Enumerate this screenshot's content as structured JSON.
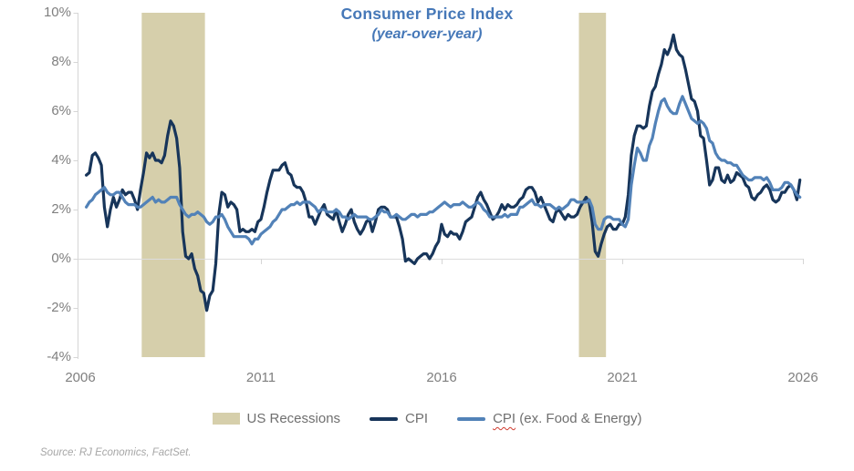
{
  "title": {
    "text": "Consumer Price Index",
    "subtitle": "(year-over-year)"
  },
  "source_note": "Source: RJ Economics, FactSet.",
  "colors": {
    "title": "#4678b8",
    "cpi_line": "#17355a",
    "core_cpi_line": "#5282b8",
    "recession_band": "#d6cfab",
    "axis_line": "#d6d6d6",
    "zero_gridline": "#dcdcdc",
    "axis_text": "#7f7f7f",
    "legend_text": "#6f6f6f",
    "source_text": "#a6a6a6",
    "spellcheck_squiggle": "#d03b2f"
  },
  "axes": {
    "y_ticks": [
      "10%",
      "8%",
      "6%",
      "4%",
      "2%",
      "0%",
      "-2%",
      "-4%"
    ],
    "x_ticks": [
      "2006",
      "2011",
      "2016",
      "2021",
      "2026"
    ]
  },
  "legend": {
    "items": [
      {
        "label": "US Recessions",
        "swatch": "rect"
      },
      {
        "label": "CPI",
        "swatch": "line"
      },
      {
        "label_word": "CPI",
        "label_rest": " (ex. Food & Energy)",
        "swatch": "line"
      }
    ]
  },
  "chart_data": {
    "type": "line",
    "title": "Consumer Price Index",
    "subtitle": "(year-over-year)",
    "xlabel": "",
    "ylabel": "",
    "x_axis": {
      "tick_labels": [
        "2006",
        "2011",
        "2016",
        "2021",
        "2026"
      ],
      "range_years": [
        2006,
        2026
      ]
    },
    "y_axis": {
      "tick_labels": [
        "10%",
        "8%",
        "6%",
        "4%",
        "2%",
        "0%",
        "-2%",
        "-4%"
      ],
      "range_pct": [
        -4,
        10
      ],
      "unit": "%"
    },
    "gridlines": "zero-line-only",
    "legend_position": "bottom",
    "x_start_year": 2006.1667,
    "x_step_years": 0.0833333,
    "recession_bands": [
      {
        "start": 2007.7,
        "end": 2009.45
      },
      {
        "start": 2019.8,
        "end": 2020.55
      }
    ],
    "series": [
      {
        "name": "CPI",
        "color_key": "cpi_line",
        "values": [
          3.4,
          3.5,
          4.2,
          4.3,
          4.1,
          3.8,
          2.1,
          1.3,
          2.0,
          2.5,
          2.1,
          2.4,
          2.8,
          2.6,
          2.7,
          2.7,
          2.4,
          2.0,
          2.8,
          3.5,
          4.3,
          4.1,
          4.3,
          4.0,
          4.0,
          3.9,
          4.2,
          5.0,
          5.6,
          5.4,
          4.9,
          3.7,
          1.1,
          0.1,
          0.0,
          0.2,
          -0.4,
          -0.7,
          -1.3,
          -1.4,
          -2.1,
          -1.5,
          -1.3,
          -0.2,
          1.8,
          2.7,
          2.6,
          2.1,
          2.3,
          2.2,
          2.0,
          1.1,
          1.2,
          1.1,
          1.1,
          1.2,
          1.1,
          1.5,
          1.6,
          2.1,
          2.7,
          3.2,
          3.6,
          3.6,
          3.6,
          3.8,
          3.9,
          3.5,
          3.4,
          3.0,
          2.9,
          2.9,
          2.7,
          2.3,
          1.7,
          1.7,
          1.4,
          1.7,
          2.0,
          2.2,
          1.8,
          1.7,
          1.6,
          2.0,
          1.5,
          1.1,
          1.4,
          1.8,
          2.0,
          1.5,
          1.2,
          1.0,
          1.2,
          1.5,
          1.6,
          1.1,
          1.5,
          2.0,
          2.1,
          2.1,
          2.0,
          1.7,
          1.7,
          1.7,
          1.3,
          0.8,
          -0.1,
          0.0,
          -0.1,
          -0.2,
          0.0,
          0.1,
          0.2,
          0.2,
          0.0,
          0.2,
          0.5,
          0.7,
          1.4,
          1.0,
          0.9,
          1.1,
          1.0,
          1.0,
          0.8,
          1.1,
          1.5,
          1.6,
          1.7,
          2.1,
          2.5,
          2.7,
          2.4,
          2.2,
          1.9,
          1.6,
          1.7,
          1.9,
          2.2,
          2.0,
          2.2,
          2.1,
          2.1,
          2.2,
          2.4,
          2.5,
          2.8,
          2.9,
          2.9,
          2.7,
          2.3,
          2.5,
          2.2,
          1.9,
          1.6,
          1.5,
          1.9,
          2.0,
          1.8,
          1.6,
          1.8,
          1.7,
          1.7,
          1.8,
          2.1,
          2.3,
          2.5,
          2.3,
          1.5,
          0.3,
          0.1,
          0.6,
          1.0,
          1.3,
          1.4,
          1.2,
          1.2,
          1.4,
          1.4,
          1.7,
          2.6,
          4.2,
          5.0,
          5.4,
          5.4,
          5.3,
          5.4,
          6.2,
          6.8,
          7.0,
          7.5,
          7.9,
          8.5,
          8.3,
          8.6,
          9.1,
          8.5,
          8.3,
          8.2,
          7.7,
          7.1,
          6.5,
          6.4,
          6.0,
          5.0,
          4.9,
          4.0,
          3.0,
          3.2,
          3.7,
          3.7,
          3.2,
          3.1,
          3.4,
          3.1,
          3.2,
          3.5,
          3.4,
          3.3,
          3.0,
          2.9,
          2.5,
          2.4,
          2.6,
          2.7,
          2.9,
          3.0,
          2.8,
          2.4,
          2.3,
          2.4,
          2.7,
          2.7,
          2.9,
          3.0,
          2.8,
          2.4,
          3.2
        ]
      },
      {
        "name": "CPI (ex. Food & Energy)",
        "color_key": "core_cpi_line",
        "values": [
          2.1,
          2.3,
          2.4,
          2.6,
          2.7,
          2.8,
          2.9,
          2.7,
          2.6,
          2.6,
          2.7,
          2.7,
          2.5,
          2.3,
          2.2,
          2.2,
          2.2,
          2.1,
          2.1,
          2.2,
          2.3,
          2.4,
          2.5,
          2.3,
          2.4,
          2.3,
          2.3,
          2.4,
          2.5,
          2.5,
          2.5,
          2.2,
          2.0,
          1.8,
          1.7,
          1.8,
          1.8,
          1.9,
          1.8,
          1.7,
          1.5,
          1.4,
          1.5,
          1.7,
          1.7,
          1.8,
          1.6,
          1.3,
          1.1,
          0.9,
          0.9,
          0.9,
          0.9,
          0.9,
          0.8,
          0.6,
          0.8,
          0.8,
          1.0,
          1.1,
          1.2,
          1.3,
          1.5,
          1.6,
          1.8,
          2.0,
          2.0,
          2.1,
          2.2,
          2.2,
          2.3,
          2.2,
          2.3,
          2.3,
          2.3,
          2.2,
          2.1,
          1.9,
          2.0,
          2.0,
          1.9,
          1.9,
          1.9,
          2.0,
          1.9,
          1.7,
          1.7,
          1.6,
          1.7,
          1.8,
          1.7,
          1.7,
          1.7,
          1.7,
          1.6,
          1.6,
          1.7,
          1.8,
          2.0,
          1.9,
          1.9,
          1.7,
          1.7,
          1.8,
          1.7,
          1.6,
          1.6,
          1.7,
          1.8,
          1.8,
          1.7,
          1.8,
          1.8,
          1.8,
          1.9,
          1.9,
          2.0,
          2.1,
          2.2,
          2.3,
          2.2,
          2.1,
          2.2,
          2.2,
          2.2,
          2.3,
          2.2,
          2.1,
          2.1,
          2.2,
          2.3,
          2.2,
          2.0,
          1.9,
          1.7,
          1.7,
          1.7,
          1.7,
          1.7,
          1.8,
          1.7,
          1.8,
          1.8,
          1.8,
          2.1,
          2.1,
          2.2,
          2.3,
          2.4,
          2.2,
          2.2,
          2.1,
          2.2,
          2.2,
          2.2,
          2.1,
          2.0,
          2.1,
          2.0,
          2.1,
          2.2,
          2.4,
          2.4,
          2.3,
          2.3,
          2.3,
          2.3,
          2.4,
          2.1,
          1.4,
          1.2,
          1.2,
          1.6,
          1.7,
          1.7,
          1.6,
          1.6,
          1.6,
          1.4,
          1.3,
          1.6,
          3.0,
          3.8,
          4.5,
          4.3,
          4.0,
          4.0,
          4.6,
          4.9,
          5.5,
          6.0,
          6.4,
          6.5,
          6.2,
          6.0,
          5.9,
          5.9,
          6.3,
          6.6,
          6.3,
          6.0,
          5.7,
          5.6,
          5.5,
          5.6,
          5.5,
          5.3,
          4.8,
          4.7,
          4.3,
          4.1,
          4.0,
          4.0,
          3.9,
          3.9,
          3.8,
          3.8,
          3.6,
          3.4,
          3.3,
          3.2,
          3.2,
          3.3,
          3.3,
          3.3,
          3.2,
          3.3,
          3.1,
          2.8,
          2.8,
          2.8,
          2.9,
          3.1,
          3.1,
          3.0,
          2.8,
          2.6,
          2.5
        ]
      }
    ]
  }
}
